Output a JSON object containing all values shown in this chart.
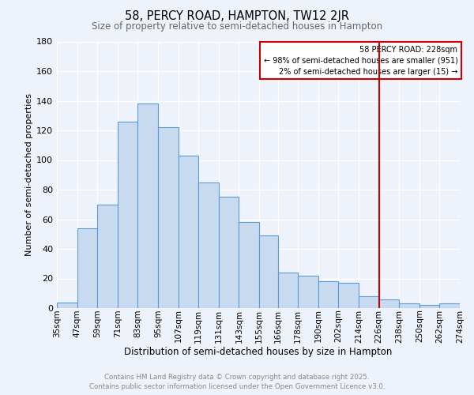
{
  "title": "58, PERCY ROAD, HAMPTON, TW12 2JR",
  "subtitle": "Size of property relative to semi-detached houses in Hampton",
  "xlabel": "Distribution of semi-detached houses by size in Hampton",
  "ylabel": "Number of semi-detached properties",
  "bin_labels": [
    "35sqm",
    "47sqm",
    "59sqm",
    "71sqm",
    "83sqm",
    "95sqm",
    "107sqm",
    "119sqm",
    "131sqm",
    "143sqm",
    "155sqm",
    "166sqm",
    "178sqm",
    "190sqm",
    "202sqm",
    "214sqm",
    "226sqm",
    "238sqm",
    "250sqm",
    "262sqm",
    "274sqm"
  ],
  "bin_edges": [
    35,
    47,
    59,
    71,
    83,
    95,
    107,
    119,
    131,
    143,
    155,
    166,
    178,
    190,
    202,
    214,
    226,
    238,
    250,
    262,
    274
  ],
  "bar_values": [
    4,
    54,
    70,
    126,
    138,
    122,
    103,
    85,
    75,
    58,
    49,
    24,
    22,
    18,
    17,
    8,
    6,
    3,
    2,
    3
  ],
  "bar_color": "#c8daf0",
  "bar_edge_color": "#5b9bd5",
  "ylim_max": 180,
  "yticks": [
    0,
    20,
    40,
    60,
    80,
    100,
    120,
    140,
    160,
    180
  ],
  "vline_x": 226,
  "vline_color": "#cc0000",
  "annotation_title": "58 PERCY ROAD: 228sqm",
  "annotation_line1": "← 98% of semi-detached houses are smaller (951)",
  "annotation_line2": "2% of semi-detached houses are larger (15) →",
  "annotation_box_edgecolor": "#cc0000",
  "footer_line1": "Contains HM Land Registry data © Crown copyright and database right 2025.",
  "footer_line2": "Contains public sector information licensed under the Open Government Licence v3.0.",
  "background_color": "#eef2fa"
}
